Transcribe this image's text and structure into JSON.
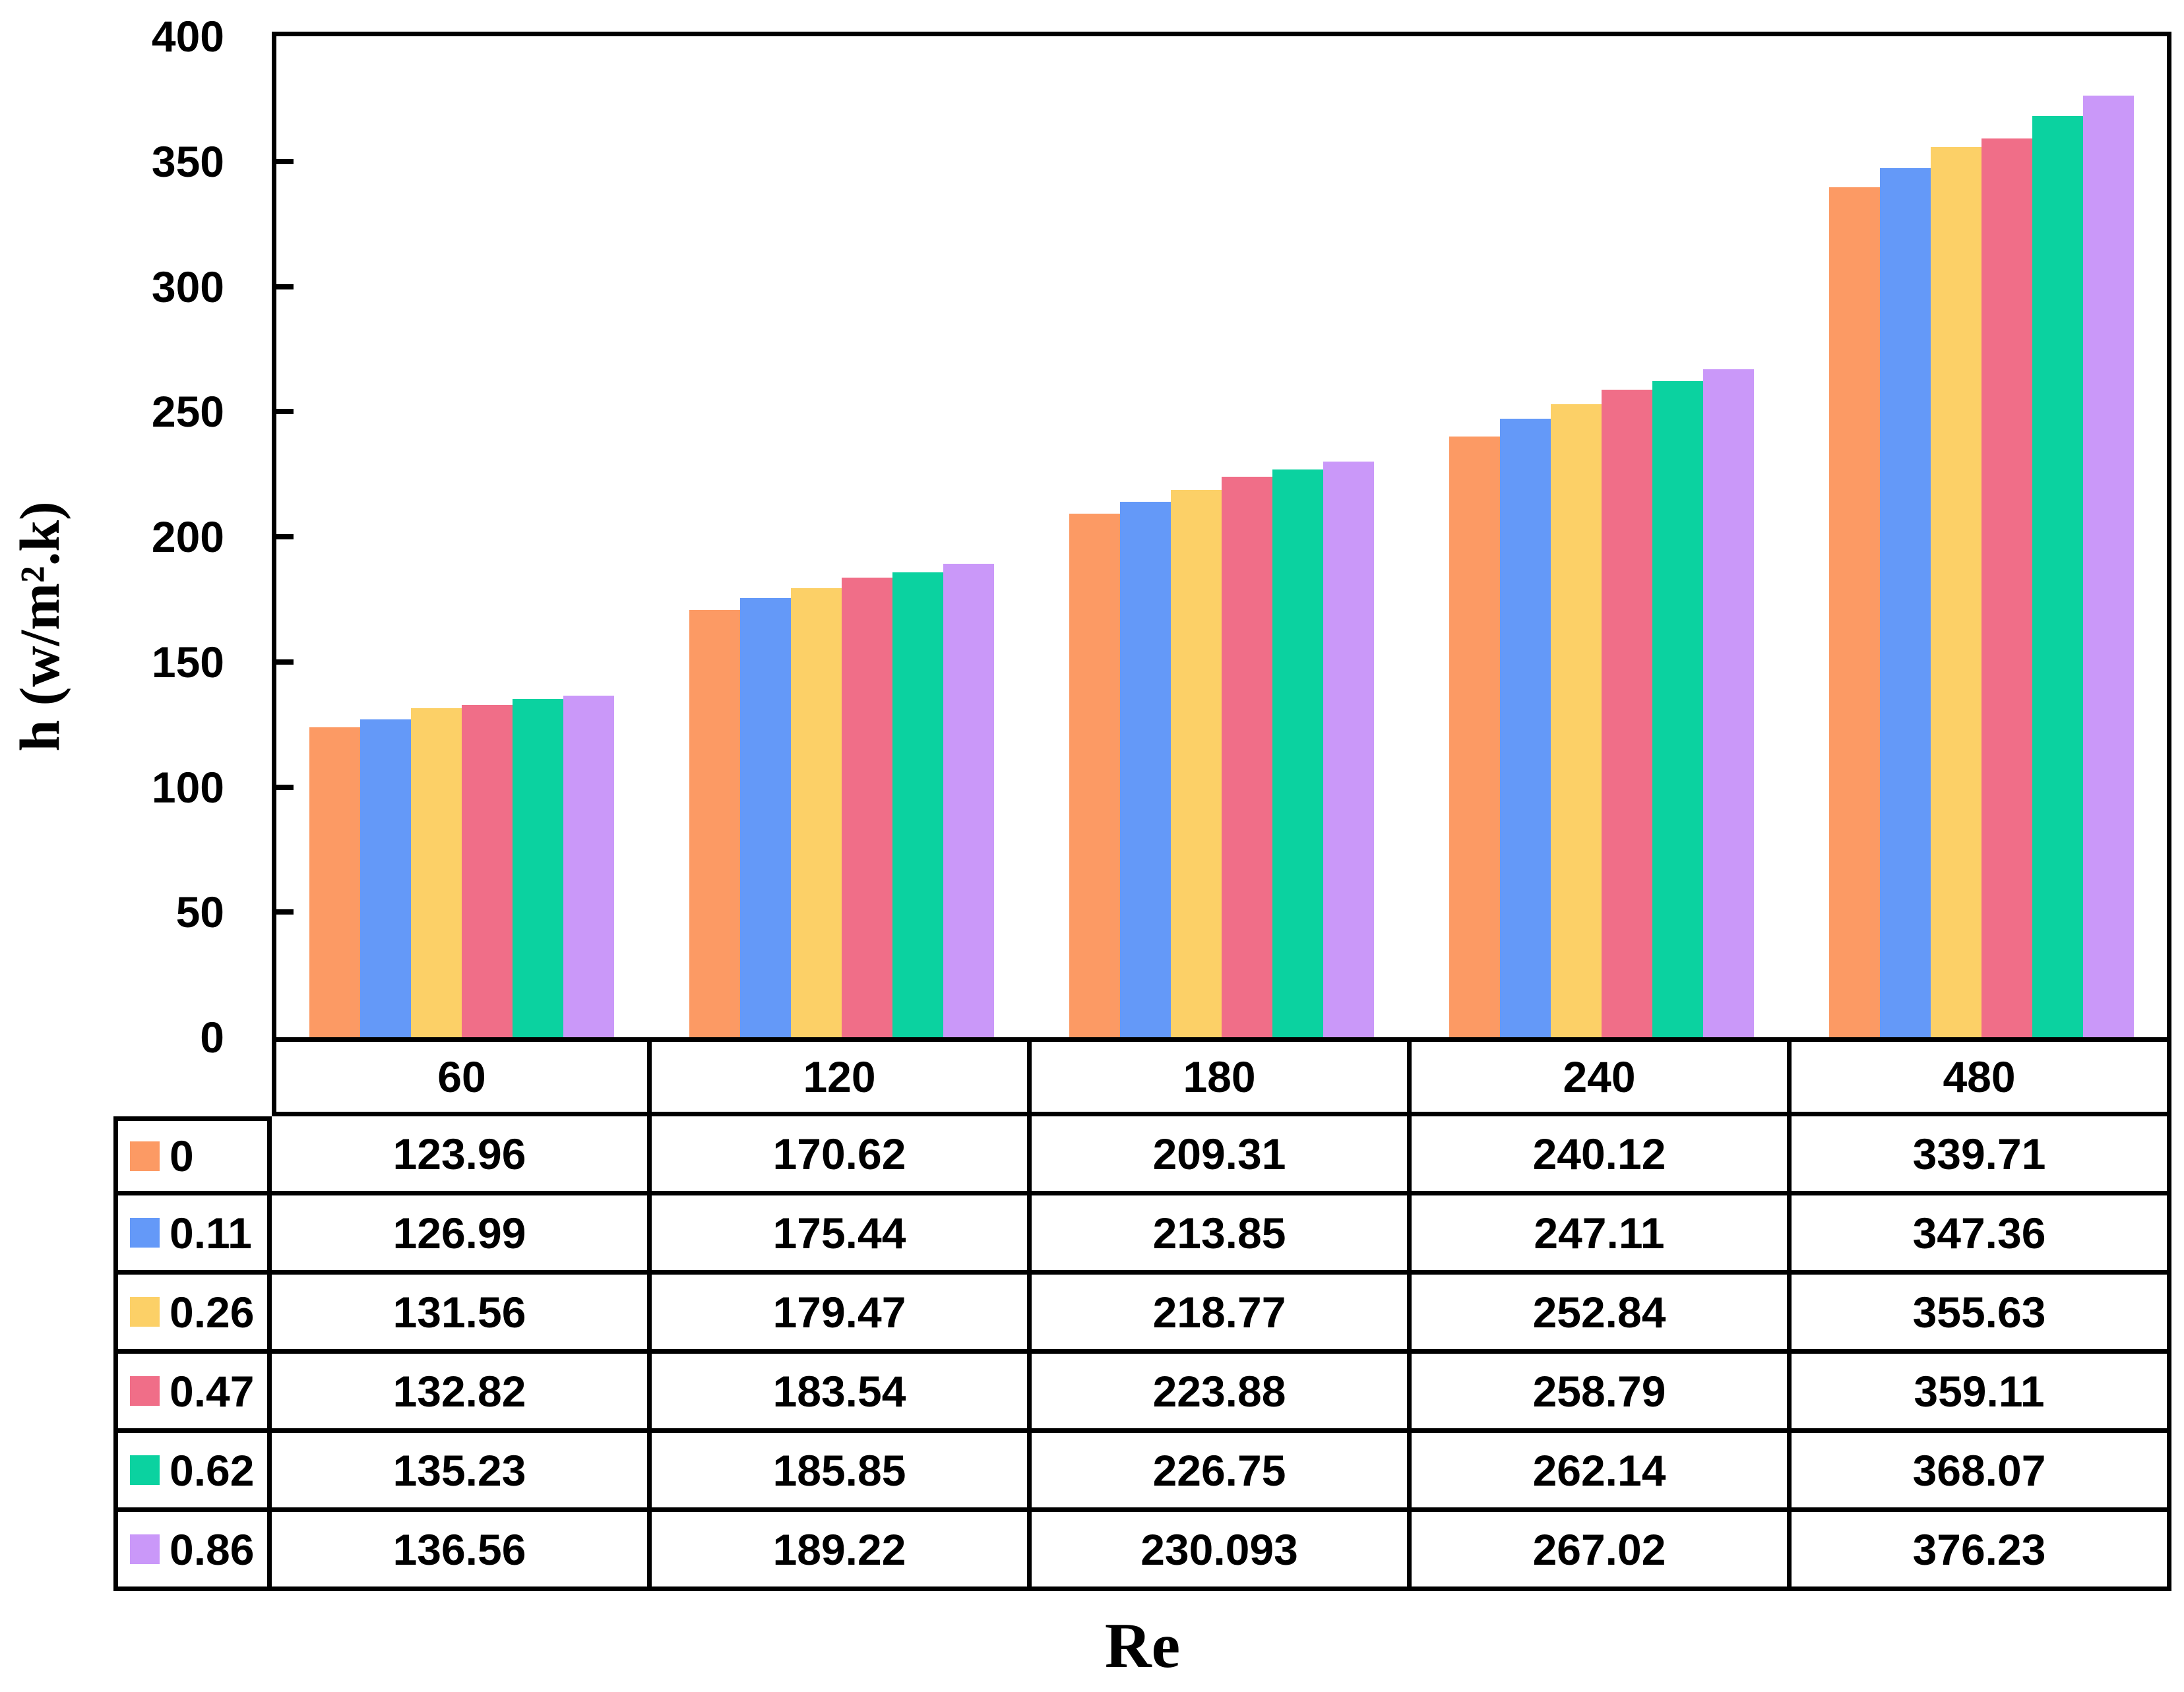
{
  "chart_data": {
    "type": "bar",
    "title": "",
    "xlabel": "Re",
    "ylabel": "h (w/m².k)",
    "ylim": [
      0,
      400
    ],
    "yticks": [
      0,
      50,
      100,
      150,
      200,
      250,
      300,
      350,
      400
    ],
    "grid": false,
    "legend_position": "table-left-column",
    "categories": [
      "60",
      "120",
      "180",
      "240",
      "480"
    ],
    "series": [
      {
        "name": "0",
        "color": "#FC9A64",
        "values": [
          123.96,
          170.62,
          209.31,
          240.12,
          339.71
        ]
      },
      {
        "name": "0.11",
        "color": "#6499F8",
        "values": [
          126.99,
          175.44,
          213.85,
          247.11,
          347.36
        ]
      },
      {
        "name": "0.26",
        "color": "#FCD067",
        "values": [
          131.56,
          179.47,
          218.77,
          252.84,
          355.63
        ]
      },
      {
        "name": "0.47",
        "color": "#F06E88",
        "values": [
          132.82,
          183.54,
          223.88,
          258.79,
          359.11
        ]
      },
      {
        "name": "0.62",
        "color": "#0BD2A0",
        "values": [
          135.23,
          185.85,
          226.75,
          262.14,
          368.07
        ]
      },
      {
        "name": "0.86",
        "color": "#CA98F9",
        "values": [
          136.56,
          189.22,
          230.093,
          267.02,
          376.23
        ]
      }
    ]
  }
}
